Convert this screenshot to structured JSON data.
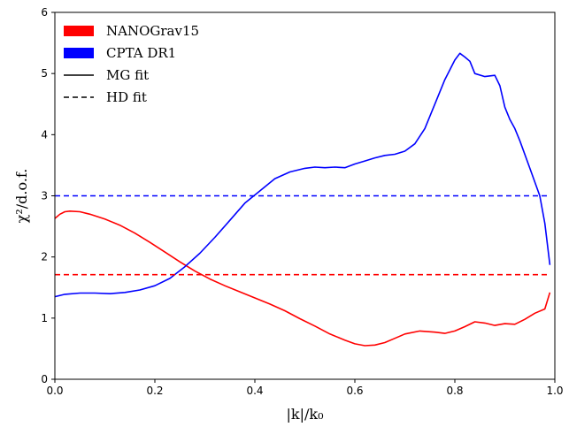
{
  "chart_data": {
    "type": "line",
    "title": "",
    "xlabel": "|k|/k₀",
    "ylabel": "χ²/d.o.f.",
    "xlim": [
      0.0,
      1.0
    ],
    "ylim": [
      0,
      6
    ],
    "x_ticks": [
      "0.0",
      "0.2",
      "0.4",
      "0.6",
      "0.8",
      "1.0"
    ],
    "y_ticks": [
      "0",
      "1",
      "2",
      "3",
      "4",
      "5",
      "6"
    ],
    "grid": false,
    "legend_position": "top-left",
    "legend": [
      {
        "label": "NANOGrav15",
        "kind": "patch",
        "color": "#ff0000"
      },
      {
        "label": "CPTA DR1",
        "kind": "patch",
        "color": "#0000ff"
      },
      {
        "label": "MG fit",
        "kind": "solid-line",
        "color": "#000000"
      },
      {
        "label": "HD fit",
        "kind": "dashed-line",
        "color": "#000000"
      }
    ],
    "series": [
      {
        "name": "NANOGrav15",
        "style": "MG fit",
        "color": "#ff0000",
        "x": [
          0.0,
          0.01,
          0.02,
          0.03,
          0.05,
          0.07,
          0.1,
          0.13,
          0.16,
          0.19,
          0.22,
          0.25,
          0.28,
          0.31,
          0.34,
          0.37,
          0.4,
          0.43,
          0.46,
          0.49,
          0.52,
          0.55,
          0.58,
          0.6,
          0.62,
          0.64,
          0.66,
          0.68,
          0.7,
          0.73,
          0.76,
          0.78,
          0.8,
          0.82,
          0.84,
          0.86,
          0.88,
          0.9,
          0.92,
          0.94,
          0.96,
          0.98,
          0.99
        ],
        "y": [
          2.63,
          2.7,
          2.74,
          2.75,
          2.74,
          2.7,
          2.62,
          2.52,
          2.39,
          2.24,
          2.08,
          1.92,
          1.77,
          1.64,
          1.53,
          1.43,
          1.33,
          1.23,
          1.12,
          0.99,
          0.87,
          0.74,
          0.64,
          0.58,
          0.55,
          0.56,
          0.6,
          0.67,
          0.74,
          0.79,
          0.77,
          0.75,
          0.79,
          0.86,
          0.94,
          0.92,
          0.88,
          0.91,
          0.9,
          0.98,
          1.08,
          1.15,
          1.42
        ]
      },
      {
        "name": "CPTA DR1",
        "style": "MG fit",
        "color": "#0000ff",
        "x": [
          0.0,
          0.02,
          0.05,
          0.08,
          0.11,
          0.14,
          0.17,
          0.2,
          0.23,
          0.26,
          0.29,
          0.32,
          0.35,
          0.38,
          0.41,
          0.44,
          0.47,
          0.5,
          0.52,
          0.54,
          0.56,
          0.58,
          0.6,
          0.62,
          0.64,
          0.66,
          0.68,
          0.7,
          0.72,
          0.74,
          0.76,
          0.78,
          0.8,
          0.81,
          0.82,
          0.83,
          0.84,
          0.86,
          0.88,
          0.89,
          0.9,
          0.91,
          0.92,
          0.93,
          0.95,
          0.97,
          0.98,
          0.99
        ],
        "y": [
          1.35,
          1.39,
          1.41,
          1.41,
          1.4,
          1.42,
          1.46,
          1.53,
          1.65,
          1.84,
          2.06,
          2.32,
          2.6,
          2.88,
          3.08,
          3.28,
          3.39,
          3.45,
          3.47,
          3.46,
          3.47,
          3.46,
          3.52,
          3.57,
          3.62,
          3.66,
          3.68,
          3.73,
          3.85,
          4.1,
          4.5,
          4.9,
          5.22,
          5.33,
          5.27,
          5.2,
          5.0,
          4.95,
          4.97,
          4.8,
          4.45,
          4.25,
          4.1,
          3.9,
          3.45,
          3.0,
          2.55,
          1.87
        ]
      },
      {
        "name": "NANOGrav15",
        "style": "HD fit",
        "color": "#ff0000",
        "x": [
          0.0,
          0.99
        ],
        "y": [
          1.71,
          1.71
        ]
      },
      {
        "name": "CPTA DR1",
        "style": "HD fit",
        "color": "#0000ff",
        "x": [
          0.0,
          0.99
        ],
        "y": [
          3.0,
          3.0
        ]
      }
    ]
  }
}
